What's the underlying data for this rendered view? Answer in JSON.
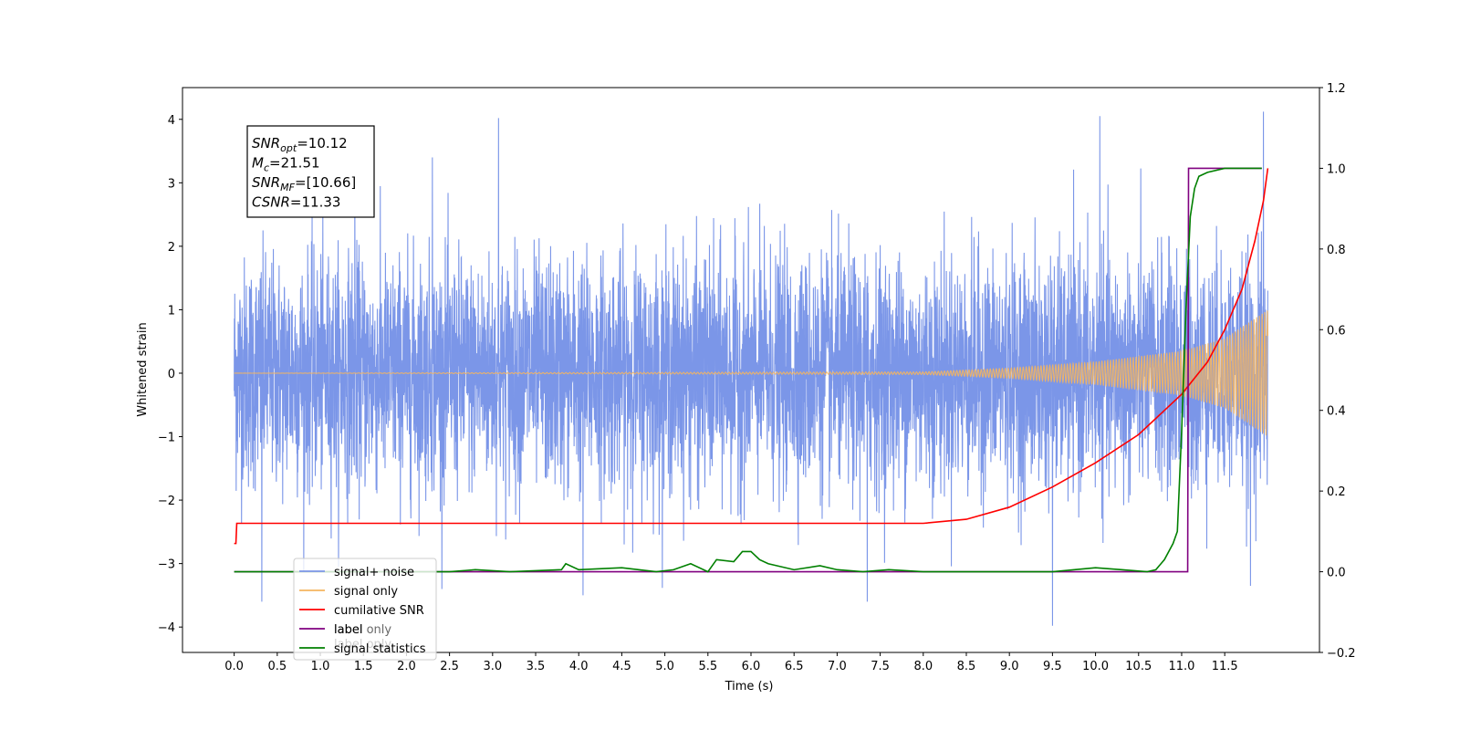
{
  "chart_data": {
    "type": "line",
    "title": "",
    "xlabel": "Time (s)",
    "ylabel": "Whitened strain",
    "y2label": "",
    "xlim": [
      -0.6,
      12.6
    ],
    "ylim": [
      -4.4,
      4.5
    ],
    "y2lim": [
      -0.2,
      1.2
    ],
    "x_ticks": [
      "0.0",
      "0.5",
      "1.0",
      "1.5",
      "2.0",
      "2.5",
      "3.0",
      "3.5",
      "4.0",
      "4.5",
      "5.0",
      "5.5",
      "6.0",
      "6.5",
      "7.0",
      "7.5",
      "8.0",
      "8.5",
      "9.0",
      "9.5",
      "10.0",
      "10.5",
      "11.0",
      "11.5"
    ],
    "y_ticks": [
      "4",
      "3",
      "2",
      "1",
      "0",
      "−1",
      "−2",
      "−3",
      "−4"
    ],
    "y2_ticks": [
      "1.2",
      "1.0",
      "0.8",
      "0.6",
      "0.4",
      "0.2",
      "0.0",
      "−0.2"
    ],
    "grid": false,
    "legend_position": "lower-left",
    "time_range": [
      0.0,
      12.0
    ],
    "series": [
      {
        "name": "signal+ noise",
        "axis": "left",
        "color": "#7b96e8",
        "description_values": {
          "std": 0.9,
          "peak_max": 4.12,
          "peak_min": -3.98
        },
        "spikes": [
          [
            0.32,
            -3.6
          ],
          [
            3.07,
            4.02
          ],
          [
            4.05,
            -3.5
          ],
          [
            7.35,
            -3.6
          ],
          [
            9.5,
            -3.98
          ],
          [
            10.05,
            4.05
          ],
          [
            11.95,
            4.12
          ],
          [
            11.8,
            -3.35
          ],
          [
            1.4,
            3.15
          ],
          [
            2.3,
            3.4
          ]
        ]
      },
      {
        "name": "signal only",
        "axis": "left",
        "color": "#f5b55f",
        "envelope": {
          "x": [
            0,
            8,
            9,
            10,
            11,
            11.5,
            12.0
          ],
          "amp": [
            0.0,
            0.02,
            0.08,
            0.18,
            0.35,
            0.55,
            1.0
          ]
        }
      },
      {
        "name": "cumilative SNR",
        "axis": "right",
        "color": "#ff0000",
        "x": [
          0.0,
          0.02,
          0.03,
          1.0,
          3.0,
          5.0,
          7.0,
          8.0,
          8.5,
          9.0,
          9.5,
          10.0,
          10.5,
          11.0,
          11.3,
          11.5,
          11.7,
          11.85,
          11.95,
          12.0
        ],
        "y": [
          0.07,
          0.07,
          0.12,
          0.12,
          0.12,
          0.12,
          0.12,
          0.12,
          0.13,
          0.16,
          0.21,
          0.27,
          0.34,
          0.44,
          0.52,
          0.6,
          0.7,
          0.82,
          0.92,
          1.0
        ]
      },
      {
        "name": "label",
        "axis": "right",
        "color": "#800080",
        "x": [
          0.0,
          11.07,
          11.08,
          11.93
        ],
        "y": [
          0.0,
          0.0,
          1.0,
          1.0
        ]
      },
      {
        "name": "signal statistics",
        "axis": "right",
        "color": "#008000",
        "x": [
          0.0,
          2.5,
          2.8,
          3.2,
          3.8,
          3.85,
          4.0,
          4.5,
          4.9,
          5.1,
          5.3,
          5.5,
          5.6,
          5.8,
          5.9,
          6.0,
          6.1,
          6.2,
          6.5,
          6.8,
          7.0,
          7.3,
          7.6,
          8.0,
          8.5,
          9.0,
          9.5,
          10.0,
          10.3,
          10.6,
          10.7,
          10.8,
          10.9,
          10.95,
          11.0,
          11.05,
          11.1,
          11.15,
          11.2,
          11.3,
          11.5,
          11.93
        ],
        "y": [
          0.0,
          0.0,
          0.005,
          0.0,
          0.005,
          0.02,
          0.005,
          0.01,
          0.0,
          0.005,
          0.02,
          0.0,
          0.03,
          0.025,
          0.05,
          0.05,
          0.03,
          0.02,
          0.005,
          0.015,
          0.005,
          0.0,
          0.005,
          0.0,
          0.0,
          0.0,
          0.0,
          0.01,
          0.005,
          0.0,
          0.005,
          0.03,
          0.07,
          0.1,
          0.35,
          0.65,
          0.88,
          0.95,
          0.98,
          0.99,
          1.0,
          1.0
        ]
      }
    ],
    "hidden_legend_entry": "label only",
    "annotation_lines": [
      {
        "base": "SNR",
        "sub": "opt",
        "rest": "=10.12"
      },
      {
        "base": "M",
        "sub": "c",
        "rest": "=21.51"
      },
      {
        "base": "SNR",
        "sub": "MF",
        "rest": "=[10.66]"
      },
      {
        "base": "CSNR",
        "sub": "",
        "rest": "=11.33"
      }
    ]
  }
}
